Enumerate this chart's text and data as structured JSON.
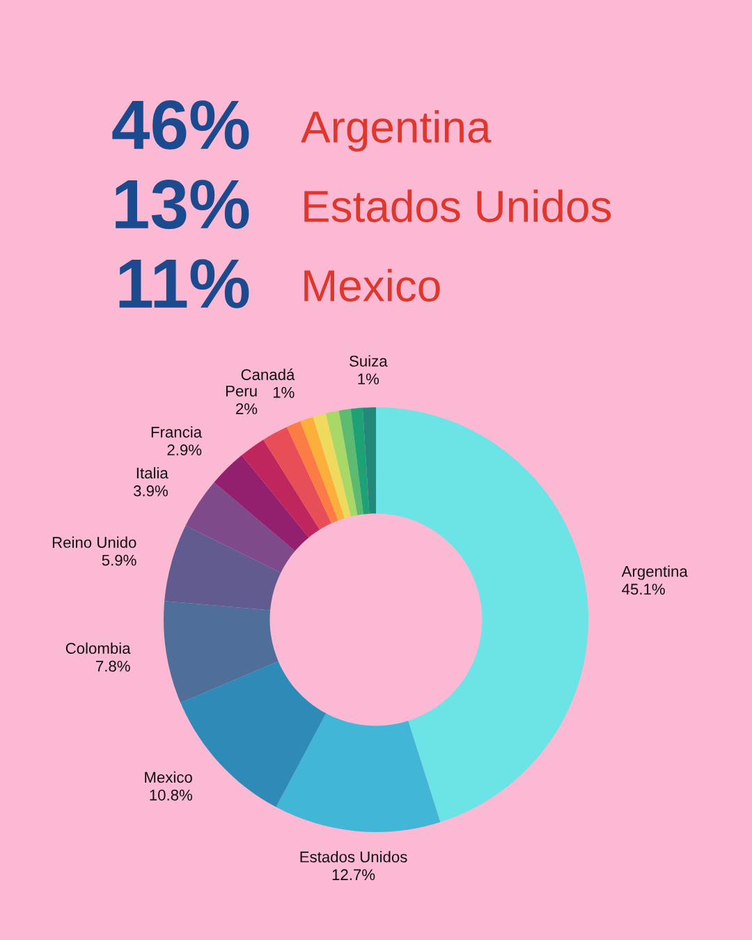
{
  "chart_data": {
    "type": "donut",
    "annotations": [
      "46%",
      "Argentina",
      "13%",
      "Estados Unidos",
      "11%",
      "Mexico"
    ],
    "categories": [
      "Argentina",
      "Estados Unidos",
      "Mexico",
      "Colombia",
      "Reino Unido",
      "Italia",
      "Francia",
      null,
      "Peru",
      null,
      "Canadá",
      null,
      null,
      null,
      null,
      "Suiza"
    ],
    "values": [
      45.1,
      12.7,
      10.8,
      7.8,
      5.9,
      3.9,
      2.9,
      2.0,
      2,
      1.1,
      1,
      1.0,
      1.0,
      0.9,
      0.9,
      1
    ],
    "value_labels": [
      "45.1%",
      "12.7%",
      "10.8%",
      "7.8%",
      "5.9%",
      "3.9%",
      "2.9%",
      null,
      "2%",
      null,
      "1%",
      null,
      null,
      null,
      null,
      "1%"
    ],
    "colors": [
      "#6ce4e6",
      "#42b6d6",
      "#2e8bb8",
      "#4f6f9a",
      "#625b8f",
      "#7e4a8a",
      "#93206e",
      "#c0265e",
      "#e84e58",
      "#fb7c45",
      "#fdaf3c",
      "#eedb5e",
      "#a8d865",
      "#5dbb6f",
      "#1da275",
      "#22897a"
    ],
    "legend": false
  }
}
